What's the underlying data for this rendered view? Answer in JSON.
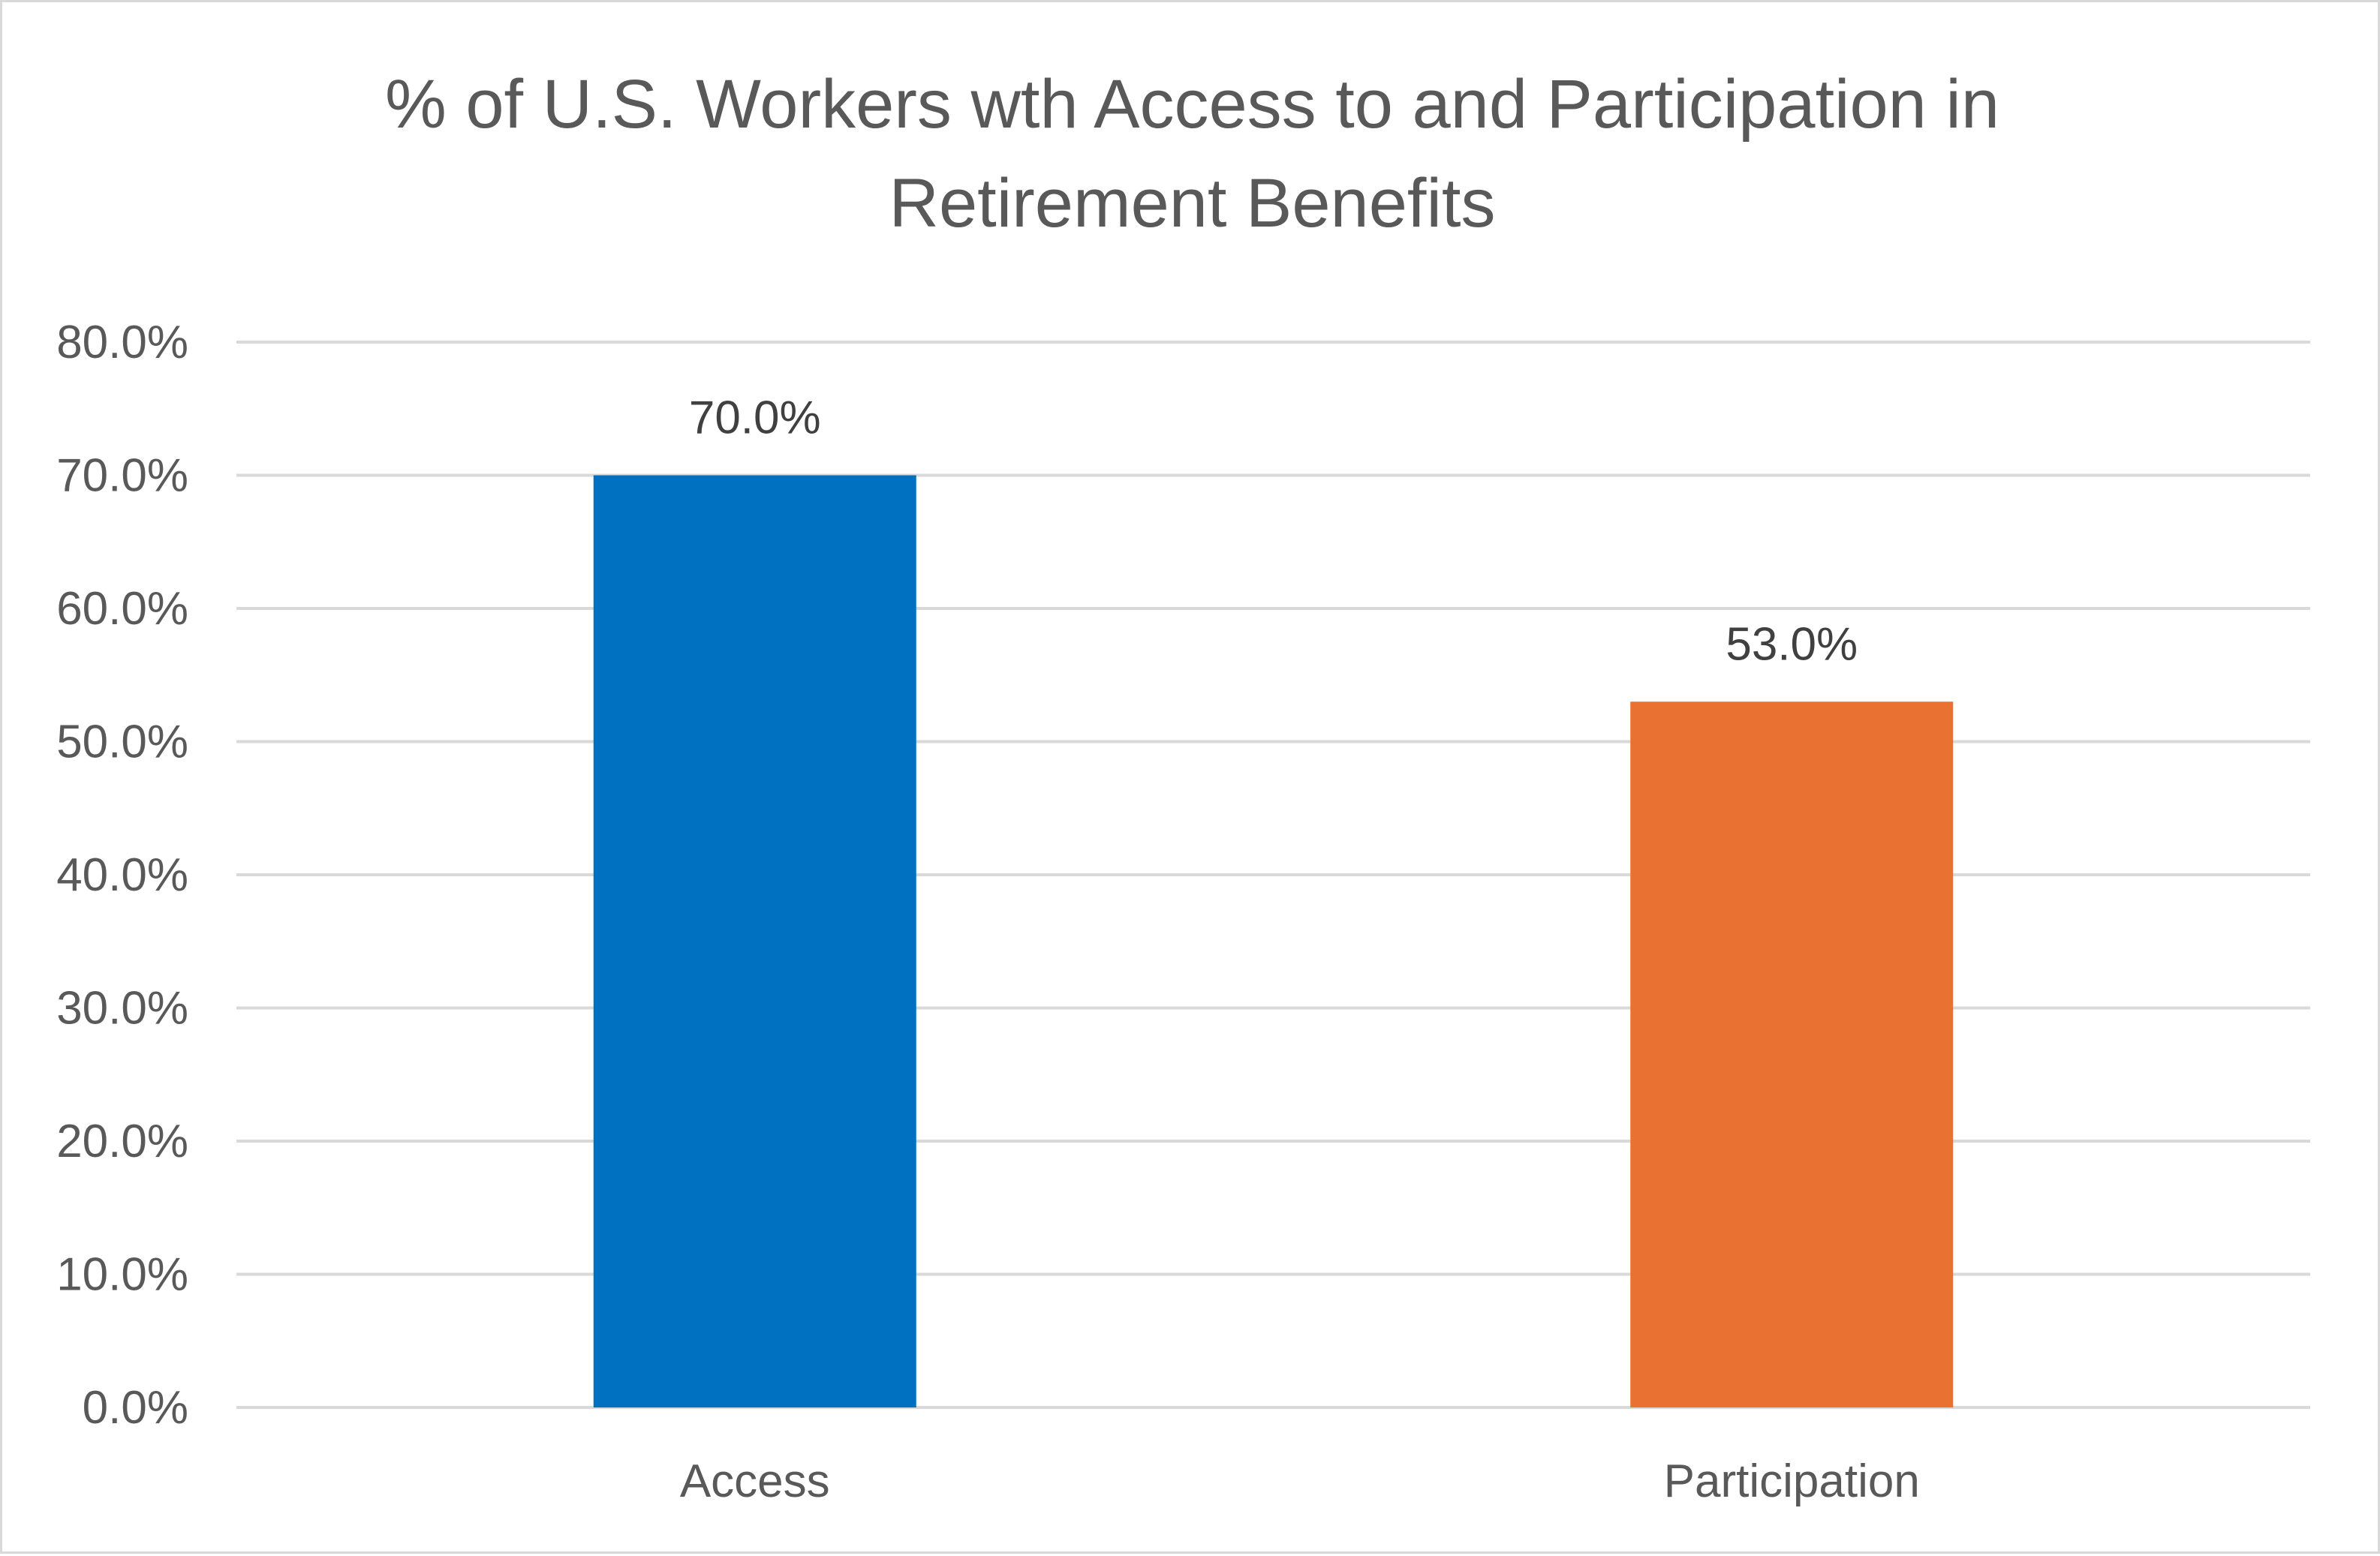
{
  "chart_data": {
    "type": "bar",
    "title_lines": [
      "% of U.S. Workers wth Access to and Participation in",
      "Retirement Benefits"
    ],
    "categories": [
      "Access",
      "Participation"
    ],
    "values": [
      70.0,
      53.0
    ],
    "data_labels": [
      "70.0%",
      "53.0%"
    ],
    "colors": [
      "#0070c0",
      "#e97132"
    ],
    "ylim": [
      0,
      80
    ],
    "yticks": [
      0,
      10,
      20,
      30,
      40,
      50,
      60,
      70,
      80
    ],
    "ytick_labels": [
      "0.0%",
      "10.0%",
      "20.0%",
      "30.0%",
      "40.0%",
      "50.0%",
      "60.0%",
      "70.0%",
      "80.0%"
    ],
    "grid": true,
    "legend": "none",
    "xlabel": "",
    "ylabel": ""
  }
}
